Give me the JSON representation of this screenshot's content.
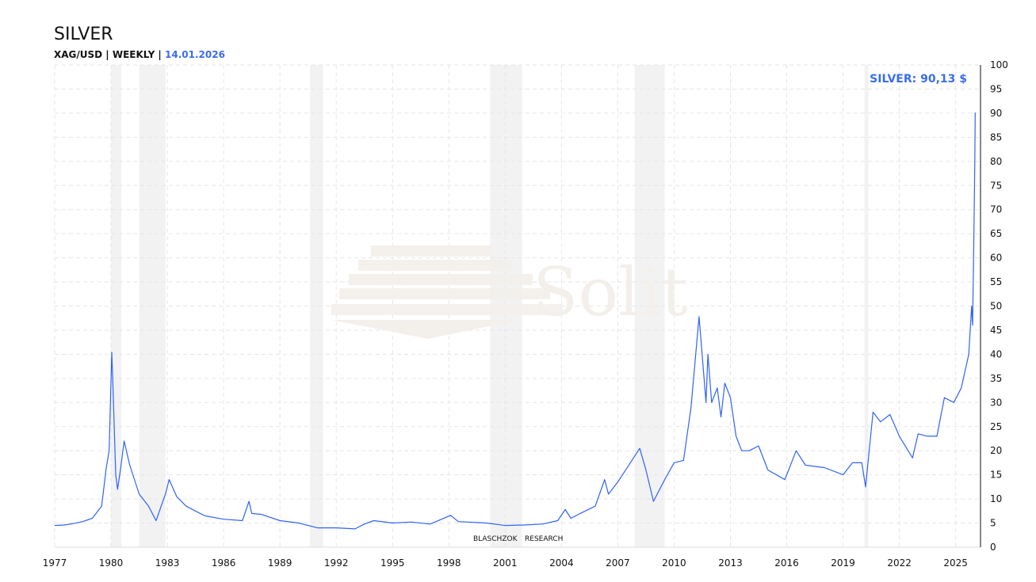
{
  "header": {
    "title": "SILVER",
    "subtitle": "XAG/USD | WEEKLY |",
    "date": "14.01.2026"
  },
  "price_label": "SILVER: 90,13 $",
  "watermark": "Solit",
  "credit": {
    "left": "BLASCHZOK",
    "right": "RESEARCH"
  },
  "colors": {
    "line": "#2f63f5",
    "accent": "#3a6df0",
    "band": "#f2f2f2"
  },
  "chart_data": {
    "type": "line",
    "title": "SILVER",
    "xlabel": "",
    "ylabel": "",
    "xlim": [
      1977,
      2026.1
    ],
    "ylim": [
      0,
      100
    ],
    "x_ticks": [
      "1977",
      "1980",
      "1983",
      "1986",
      "1989",
      "1992",
      "1995",
      "1998",
      "2001",
      "2004",
      "2007",
      "2010",
      "2013",
      "2016",
      "2019",
      "2022",
      "2025"
    ],
    "y_ticks": [
      0,
      5,
      10,
      15,
      20,
      25,
      30,
      35,
      40,
      45,
      50,
      55,
      60,
      65,
      70,
      75,
      80,
      85,
      90,
      95,
      100
    ],
    "grid": true,
    "recession_bands": [
      [
        1980.0,
        1980.55
      ],
      [
        1981.5,
        1982.9
      ],
      [
        1990.6,
        1991.3
      ],
      [
        2000.2,
        2001.9
      ],
      [
        2007.9,
        2009.5
      ],
      [
        2020.15,
        2020.35
      ]
    ],
    "series": [
      {
        "name": "XAG/USD",
        "points": [
          [
            1977,
            4.5
          ],
          [
            1977.5,
            4.6
          ],
          [
            1978,
            4.9
          ],
          [
            1978.5,
            5.3
          ],
          [
            1979,
            6
          ],
          [
            1979.5,
            8.5
          ],
          [
            1979.75,
            16.5
          ],
          [
            1979.9,
            20
          ],
          [
            1980.04,
            40.4
          ],
          [
            1980.1,
            34
          ],
          [
            1980.25,
            15
          ],
          [
            1980.35,
            12
          ],
          [
            1980.5,
            16
          ],
          [
            1980.7,
            22
          ],
          [
            1981,
            17
          ],
          [
            1981.5,
            11
          ],
          [
            1982,
            8.5
          ],
          [
            1982.4,
            5.5
          ],
          [
            1982.9,
            11
          ],
          [
            1983.1,
            14
          ],
          [
            1983.5,
            10.5
          ],
          [
            1984,
            8.5
          ],
          [
            1985,
            6.5
          ],
          [
            1986,
            5.8
          ],
          [
            1987,
            5.5
          ],
          [
            1987.35,
            9.5
          ],
          [
            1987.5,
            7
          ],
          [
            1988,
            6.8
          ],
          [
            1989,
            5.5
          ],
          [
            1990,
            5
          ],
          [
            1991,
            4
          ],
          [
            1992,
            4
          ],
          [
            1993,
            3.8
          ],
          [
            1993.5,
            4.8
          ],
          [
            1994,
            5.5
          ],
          [
            1995,
            5
          ],
          [
            1996,
            5.2
          ],
          [
            1997,
            4.8
          ],
          [
            1998.1,
            6.6
          ],
          [
            1998.5,
            5.3
          ],
          [
            1999,
            5.2
          ],
          [
            2000,
            5
          ],
          [
            2001,
            4.5
          ],
          [
            2002,
            4.6
          ],
          [
            2003,
            4.8
          ],
          [
            2003.8,
            5.5
          ],
          [
            2004.2,
            7.8
          ],
          [
            2004.5,
            6
          ],
          [
            2005,
            7
          ],
          [
            2005.8,
            8.5
          ],
          [
            2006.3,
            14
          ],
          [
            2006.5,
            11
          ],
          [
            2007,
            13.5
          ],
          [
            2008.17,
            20.5
          ],
          [
            2008.5,
            16
          ],
          [
            2008.9,
            9.5
          ],
          [
            2009.5,
            14
          ],
          [
            2010,
            17.5
          ],
          [
            2010.5,
            18
          ],
          [
            2010.9,
            29
          ],
          [
            2011.33,
            47.8
          ],
          [
            2011.7,
            30
          ],
          [
            2011.8,
            40
          ],
          [
            2012,
            30
          ],
          [
            2012.3,
            33
          ],
          [
            2012.5,
            27
          ],
          [
            2012.7,
            34
          ],
          [
            2013,
            31
          ],
          [
            2013.3,
            23
          ],
          [
            2013.6,
            20
          ],
          [
            2014,
            20
          ],
          [
            2014.5,
            21
          ],
          [
            2015,
            16
          ],
          [
            2015.9,
            14
          ],
          [
            2016.5,
            20
          ],
          [
            2017,
            17
          ],
          [
            2018,
            16.5
          ],
          [
            2019,
            15
          ],
          [
            2019.5,
            17.5
          ],
          [
            2020,
            17.5
          ],
          [
            2020.2,
            12.5
          ],
          [
            2020.6,
            28
          ],
          [
            2021,
            26
          ],
          [
            2021.5,
            27.5
          ],
          [
            2022,
            23
          ],
          [
            2022.7,
            18.5
          ],
          [
            2023,
            23.5
          ],
          [
            2023.5,
            23
          ],
          [
            2024,
            23
          ],
          [
            2024.4,
            31
          ],
          [
            2024.9,
            30
          ],
          [
            2025.3,
            33
          ],
          [
            2025.7,
            40
          ],
          [
            2025.85,
            50
          ],
          [
            2025.9,
            46
          ],
          [
            2025.95,
            58
          ],
          [
            2026,
            73
          ],
          [
            2026.02,
            80
          ],
          [
            2026.04,
            90.13
          ]
        ]
      }
    ]
  }
}
